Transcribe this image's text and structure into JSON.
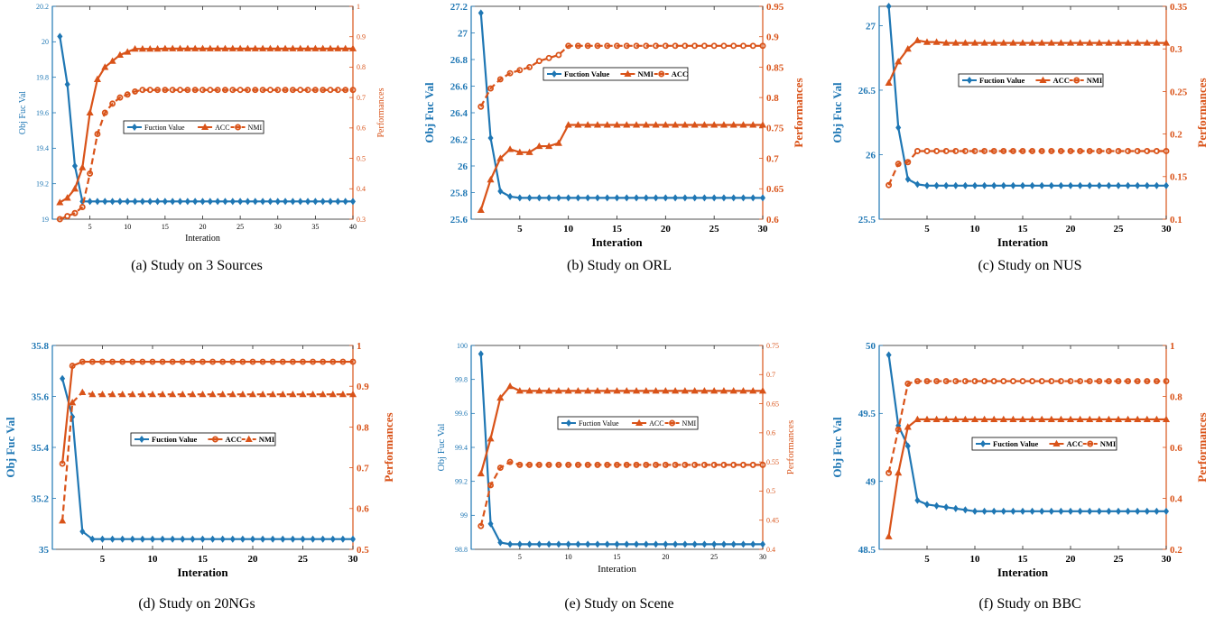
{
  "colors": {
    "left_axis": "#1f77b4",
    "right_axis": "#d95319",
    "fv_line": "#1f77b4",
    "p1_line": "#d95319",
    "p2_line": "#d95319"
  },
  "chart_data": [
    {
      "type": "line",
      "caption": "(a) Study on 3 Sources",
      "xlabel": "Interation",
      "ylabel_left": "Obj Fuc Val",
      "ylabel_right": "Performances",
      "xlim": [
        0,
        40
      ],
      "xticks": [
        5,
        10,
        15,
        20,
        25,
        30,
        35,
        40
      ],
      "ylim_left": [
        19,
        20.2
      ],
      "yticks_left": [
        19,
        19.2,
        19.4,
        19.6,
        19.8,
        20,
        20.2
      ],
      "ylim_right": [
        0.3,
        1
      ],
      "yticks_right": [
        0.3,
        0.4,
        0.5,
        0.6,
        0.7,
        0.8,
        0.9,
        1
      ],
      "bold": false,
      "legend": [
        "Fuction Value",
        "ACC",
        "NMI"
      ],
      "series": [
        {
          "name": "Fuction Value",
          "axis": "left",
          "marker": "diamond",
          "dash": false,
          "values": [
            20.03,
            19.76,
            19.3,
            19.1,
            19.1,
            19.1,
            19.1,
            19.1,
            19.1,
            19.1,
            19.1,
            19.1,
            19.1,
            19.1,
            19.1,
            19.1,
            19.1,
            19.1,
            19.1,
            19.1,
            19.1,
            19.1,
            19.1,
            19.1,
            19.1,
            19.1,
            19.1,
            19.1,
            19.1,
            19.1,
            19.1,
            19.1,
            19.1,
            19.1,
            19.1,
            19.1,
            19.1,
            19.1,
            19.1,
            19.1
          ]
        },
        {
          "name": "ACC",
          "axis": "right",
          "marker": "triangle",
          "dash": false,
          "values": [
            0.355,
            0.37,
            0.4,
            0.47,
            0.65,
            0.76,
            0.8,
            0.82,
            0.84,
            0.85,
            0.86,
            0.86,
            0.86,
            0.86,
            0.861,
            0.861,
            0.861,
            0.861,
            0.861,
            0.861,
            0.861,
            0.861,
            0.861,
            0.861,
            0.861,
            0.861,
            0.861,
            0.861,
            0.861,
            0.861,
            0.861,
            0.861,
            0.861,
            0.861,
            0.861,
            0.861,
            0.861,
            0.861,
            0.861,
            0.861
          ]
        },
        {
          "name": "NMI",
          "axis": "right",
          "marker": "circle",
          "dash": true,
          "values": [
            0.3,
            0.31,
            0.32,
            0.34,
            0.45,
            0.58,
            0.65,
            0.68,
            0.7,
            0.71,
            0.72,
            0.725,
            0.725,
            0.725,
            0.725,
            0.725,
            0.725,
            0.725,
            0.725,
            0.725,
            0.725,
            0.725,
            0.725,
            0.725,
            0.725,
            0.725,
            0.725,
            0.725,
            0.725,
            0.725,
            0.725,
            0.725,
            0.725,
            0.725,
            0.725,
            0.725,
            0.725,
            0.725,
            0.725,
            0.725
          ]
        }
      ]
    },
    {
      "type": "line",
      "caption": "(b) Study on ORL",
      "xlabel": "Interation",
      "ylabel_left": "Obj Fuc Val",
      "ylabel_right": "Performances",
      "xlim": [
        0,
        30
      ],
      "xticks": [
        5,
        10,
        15,
        20,
        25,
        30
      ],
      "ylim_left": [
        25.6,
        27.2
      ],
      "yticks_left": [
        25.6,
        25.8,
        26,
        26.2,
        26.4,
        26.6,
        26.8,
        27,
        27.2
      ],
      "ylim_right": [
        0.6,
        0.95
      ],
      "yticks_right": [
        0.6,
        0.65,
        0.7,
        0.75,
        0.8,
        0.85,
        0.9,
        0.95
      ],
      "bold": true,
      "legend": [
        "Fuction Value",
        "NMI",
        "ACC"
      ],
      "series": [
        {
          "name": "Fuction Value",
          "axis": "left",
          "marker": "diamond",
          "dash": false,
          "values": [
            27.15,
            26.21,
            25.81,
            25.77,
            25.76,
            25.76,
            25.76,
            25.76,
            25.76,
            25.76,
            25.76,
            25.76,
            25.76,
            25.76,
            25.76,
            25.76,
            25.76,
            25.76,
            25.76,
            25.76,
            25.76,
            25.76,
            25.76,
            25.76,
            25.76,
            25.76,
            25.76,
            25.76,
            25.76,
            25.76
          ]
        },
        {
          "name": "NMI",
          "axis": "right",
          "marker": "triangle",
          "dash": false,
          "values": [
            0.615,
            0.665,
            0.7,
            0.715,
            0.71,
            0.71,
            0.72,
            0.72,
            0.725,
            0.755,
            0.755,
            0.755,
            0.755,
            0.755,
            0.755,
            0.755,
            0.755,
            0.755,
            0.755,
            0.755,
            0.755,
            0.755,
            0.755,
            0.755,
            0.755,
            0.755,
            0.755,
            0.755,
            0.755,
            0.755
          ]
        },
        {
          "name": "ACC",
          "axis": "right",
          "marker": "circle",
          "dash": true,
          "values": [
            0.785,
            0.815,
            0.83,
            0.84,
            0.845,
            0.85,
            0.86,
            0.865,
            0.87,
            0.885,
            0.885,
            0.885,
            0.885,
            0.885,
            0.885,
            0.885,
            0.885,
            0.885,
            0.885,
            0.885,
            0.885,
            0.885,
            0.885,
            0.885,
            0.885,
            0.885,
            0.885,
            0.885,
            0.885,
            0.885
          ]
        }
      ]
    },
    {
      "type": "line",
      "caption": "(c) Study on NUS",
      "xlabel": "Interation",
      "ylabel_left": "Obj Fuc Val",
      "ylabel_right": "Performances",
      "xlim": [
        0,
        30
      ],
      "xticks": [
        5,
        10,
        15,
        20,
        25,
        30
      ],
      "ylim_left": [
        25.5,
        27.15
      ],
      "yticks_left": [
        25.5,
        26,
        26.5,
        27
      ],
      "ylim_right": [
        0.1,
        0.35
      ],
      "yticks_right": [
        0.1,
        0.15,
        0.2,
        0.25,
        0.3,
        0.35
      ],
      "bold": true,
      "legend": [
        "Fuction Value",
        "ACC",
        "NMI"
      ],
      "series": [
        {
          "name": "Fuction Value",
          "axis": "left",
          "marker": "diamond",
          "dash": false,
          "values": [
            27.15,
            26.21,
            25.81,
            25.77,
            25.76,
            25.76,
            25.76,
            25.76,
            25.76,
            25.76,
            25.76,
            25.76,
            25.76,
            25.76,
            25.76,
            25.76,
            25.76,
            25.76,
            25.76,
            25.76,
            25.76,
            25.76,
            25.76,
            25.76,
            25.76,
            25.76,
            25.76,
            25.76,
            25.76,
            25.76
          ]
        },
        {
          "name": "ACC",
          "axis": "right",
          "marker": "triangle",
          "dash": false,
          "values": [
            0.26,
            0.285,
            0.3,
            0.31,
            0.308,
            0.308,
            0.307,
            0.307,
            0.307,
            0.307,
            0.307,
            0.307,
            0.307,
            0.307,
            0.307,
            0.307,
            0.307,
            0.307,
            0.307,
            0.307,
            0.307,
            0.307,
            0.307,
            0.307,
            0.307,
            0.307,
            0.307,
            0.307,
            0.307,
            0.307
          ]
        },
        {
          "name": "NMI",
          "axis": "right",
          "marker": "circle",
          "dash": true,
          "values": [
            0.14,
            0.165,
            0.167,
            0.18,
            0.18,
            0.18,
            0.18,
            0.18,
            0.18,
            0.18,
            0.18,
            0.18,
            0.18,
            0.18,
            0.18,
            0.18,
            0.18,
            0.18,
            0.18,
            0.18,
            0.18,
            0.18,
            0.18,
            0.18,
            0.18,
            0.18,
            0.18,
            0.18,
            0.18,
            0.18
          ]
        }
      ]
    },
    {
      "type": "line",
      "caption": "(d) Study on 20NGs",
      "xlabel": "Interation",
      "ylabel_left": "Obj Fuc Val",
      "ylabel_right": "Performances",
      "xlim": [
        0,
        30
      ],
      "xticks": [
        5,
        10,
        15,
        20,
        25,
        30
      ],
      "ylim_left": [
        35,
        35.8
      ],
      "yticks_left": [
        35,
        35.2,
        35.4,
        35.6,
        35.8
      ],
      "ylim_right": [
        0.5,
        1
      ],
      "yticks_right": [
        0.5,
        0.6,
        0.7,
        0.8,
        0.9,
        1
      ],
      "bold": true,
      "legend": [
        "Fuction Value",
        "ACC",
        "NMI"
      ],
      "series": [
        {
          "name": "Fuction Value",
          "axis": "left",
          "marker": "diamond",
          "dash": false,
          "values": [
            35.67,
            35.52,
            35.07,
            35.04,
            35.04,
            35.04,
            35.04,
            35.04,
            35.04,
            35.04,
            35.04,
            35.04,
            35.04,
            35.04,
            35.04,
            35.04,
            35.04,
            35.04,
            35.04,
            35.04,
            35.04,
            35.04,
            35.04,
            35.04,
            35.04,
            35.04,
            35.04,
            35.04,
            35.04,
            35.04
          ]
        },
        {
          "name": "ACC",
          "axis": "right",
          "marker": "circle",
          "dash": false,
          "values": [
            0.71,
            0.95,
            0.96,
            0.96,
            0.96,
            0.96,
            0.96,
            0.96,
            0.96,
            0.96,
            0.96,
            0.96,
            0.96,
            0.96,
            0.96,
            0.96,
            0.96,
            0.96,
            0.96,
            0.96,
            0.96,
            0.96,
            0.96,
            0.96,
            0.96,
            0.96,
            0.96,
            0.96,
            0.96,
            0.96
          ]
        },
        {
          "name": "NMI",
          "axis": "right",
          "marker": "triangle",
          "dash": true,
          "values": [
            0.57,
            0.86,
            0.885,
            0.88,
            0.88,
            0.88,
            0.88,
            0.88,
            0.88,
            0.88,
            0.88,
            0.88,
            0.88,
            0.88,
            0.88,
            0.88,
            0.88,
            0.88,
            0.88,
            0.88,
            0.88,
            0.88,
            0.88,
            0.88,
            0.88,
            0.88,
            0.88,
            0.88,
            0.88,
            0.88
          ]
        }
      ]
    },
    {
      "type": "line",
      "caption": "(e) Study on Scene",
      "xlabel": "Interation",
      "ylabel_left": "Obj Fuc Val",
      "ylabel_right": "Performances",
      "xlim": [
        0,
        30
      ],
      "xticks": [
        5,
        10,
        15,
        20,
        25,
        30
      ],
      "ylim_left": [
        98.8,
        100
      ],
      "yticks_left": [
        98.8,
        99,
        99.2,
        99.4,
        99.6,
        99.8,
        100
      ],
      "ylim_right": [
        0.4,
        0.75
      ],
      "yticks_right": [
        0.4,
        0.45,
        0.5,
        0.55,
        0.6,
        0.65,
        0.7,
        0.75
      ],
      "bold": false,
      "legend": [
        "Fuction Value",
        "ACC",
        "NMI"
      ],
      "series": [
        {
          "name": "Fuction Value",
          "axis": "left",
          "marker": "diamond",
          "dash": false,
          "values": [
            99.95,
            98.95,
            98.84,
            98.83,
            98.83,
            98.83,
            98.83,
            98.83,
            98.83,
            98.83,
            98.83,
            98.83,
            98.83,
            98.83,
            98.83,
            98.83,
            98.83,
            98.83,
            98.83,
            98.83,
            98.83,
            98.83,
            98.83,
            98.83,
            98.83,
            98.83,
            98.83,
            98.83,
            98.83,
            98.83
          ]
        },
        {
          "name": "ACC",
          "axis": "right",
          "marker": "triangle",
          "dash": false,
          "values": [
            0.53,
            0.59,
            0.66,
            0.68,
            0.672,
            0.672,
            0.672,
            0.672,
            0.672,
            0.672,
            0.672,
            0.672,
            0.672,
            0.672,
            0.672,
            0.672,
            0.672,
            0.672,
            0.672,
            0.672,
            0.672,
            0.672,
            0.672,
            0.672,
            0.672,
            0.672,
            0.672,
            0.672,
            0.672,
            0.672
          ]
        },
        {
          "name": "NMI",
          "axis": "right",
          "marker": "circle",
          "dash": true,
          "values": [
            0.44,
            0.51,
            0.54,
            0.55,
            0.545,
            0.545,
            0.545,
            0.545,
            0.545,
            0.545,
            0.545,
            0.545,
            0.545,
            0.545,
            0.545,
            0.545,
            0.545,
            0.545,
            0.545,
            0.545,
            0.545,
            0.545,
            0.545,
            0.545,
            0.545,
            0.545,
            0.545,
            0.545,
            0.545,
            0.545
          ]
        }
      ]
    },
    {
      "type": "line",
      "caption": "(f) Study on BBC",
      "xlabel": "Interation",
      "ylabel_left": "Obj Fuc Val",
      "ylabel_right": "Performances",
      "xlim": [
        0,
        30
      ],
      "xticks": [
        5,
        10,
        15,
        20,
        25,
        30
      ],
      "ylim_left": [
        48.5,
        50
      ],
      "yticks_left": [
        48.5,
        49,
        49.5,
        50
      ],
      "ylim_right": [
        0.2,
        1
      ],
      "yticks_right": [
        0.2,
        0.4,
        0.6,
        0.8,
        1
      ],
      "bold": true,
      "legend": [
        "Fuction Value",
        "ACC",
        "NMI"
      ],
      "series": [
        {
          "name": "Fuction Value",
          "axis": "left",
          "marker": "diamond",
          "dash": false,
          "values": [
            49.93,
            49.41,
            49.26,
            48.86,
            48.83,
            48.82,
            48.81,
            48.8,
            48.79,
            48.78,
            48.78,
            48.78,
            48.78,
            48.78,
            48.78,
            48.78,
            48.78,
            48.78,
            48.78,
            48.78,
            48.78,
            48.78,
            48.78,
            48.78,
            48.78,
            48.78,
            48.78,
            48.78,
            48.78,
            48.78
          ]
        },
        {
          "name": "ACC",
          "axis": "right",
          "marker": "triangle",
          "dash": false,
          "values": [
            0.25,
            0.5,
            0.68,
            0.71,
            0.71,
            0.71,
            0.71,
            0.71,
            0.71,
            0.71,
            0.71,
            0.71,
            0.71,
            0.71,
            0.71,
            0.71,
            0.71,
            0.71,
            0.71,
            0.71,
            0.71,
            0.71,
            0.71,
            0.71,
            0.71,
            0.71,
            0.71,
            0.71,
            0.71,
            0.71
          ]
        },
        {
          "name": "NMI",
          "axis": "right",
          "marker": "circle",
          "dash": true,
          "values": [
            0.5,
            0.67,
            0.85,
            0.86,
            0.86,
            0.86,
            0.86,
            0.86,
            0.86,
            0.86,
            0.86,
            0.86,
            0.86,
            0.86,
            0.86,
            0.86,
            0.86,
            0.86,
            0.86,
            0.86,
            0.86,
            0.86,
            0.86,
            0.86,
            0.86,
            0.86,
            0.86,
            0.86,
            0.86,
            0.86
          ]
        }
      ]
    }
  ]
}
